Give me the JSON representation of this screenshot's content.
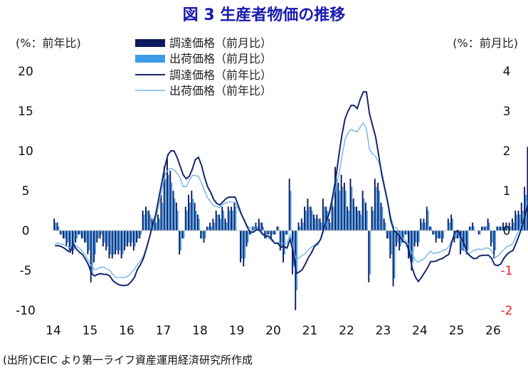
{
  "chart_data": {
    "type": "bar+line",
    "title": "図 3 生産者物価の推移",
    "left_unit": "(%：前年比)",
    "right_unit": "(%：前月比)",
    "source": "(出所)CEIC より第一ライフ資産運用経済研究所作成",
    "left_axis": {
      "min": -10,
      "max": 20,
      "ticks": [
        "20",
        "15",
        "10",
        "5",
        "0",
        "-5",
        "-10"
      ]
    },
    "right_axis": {
      "min": -2,
      "max": 4,
      "ticks": [
        "4",
        "3",
        "2",
        "1",
        "0",
        "-1",
        "-2"
      ]
    },
    "x_labels": [
      "14",
      "15",
      "16",
      "17",
      "18",
      "19",
      "20",
      "21",
      "22",
      "23",
      "24",
      "25",
      "26"
    ],
    "start": "2014-01",
    "colors": {
      "procure_bar": "#0d1a5c",
      "shipment_bar": "#3d9bea",
      "procure_line": "#16266e",
      "shipment_line": "#5aaae8"
    },
    "legend": [
      {
        "label": "調達価格（前月比）",
        "kind": "bar",
        "series": "procure_mom"
      },
      {
        "label": "出荷価格（前月比）",
        "kind": "bar",
        "series": "shipment_mom"
      },
      {
        "label": "調達価格（前年比）",
        "kind": "line",
        "series": "procure_yoy"
      },
      {
        "label": "出荷価格（前年比）",
        "kind": "line",
        "series": "shipment_yoy"
      }
    ],
    "series": {
      "procure_yoy": [
        -1.9,
        -1.9,
        -2.0,
        -2.2,
        -2.5,
        -2.7,
        -1.7,
        -2.3,
        -2.7,
        -3.0,
        -3.6,
        -4.3,
        -5.4,
        -5.7,
        -5.5,
        -5.4,
        -5.5,
        -5.5,
        -5.7,
        -6.3,
        -6.6,
        -6.8,
        -6.9,
        -6.9,
        -6.8,
        -6.4,
        -5.9,
        -4.9,
        -4.3,
        -3.5,
        -2.2,
        -0.8,
        0.7,
        2.0,
        4.0,
        6.0,
        8.0,
        9.5,
        10.0,
        10.0,
        9.2,
        8.1,
        7.0,
        6.5,
        6.8,
        7.7,
        8.9,
        9.2,
        8.2,
        6.7,
        5.5,
        4.8,
        3.9,
        3.4,
        3.2,
        3.6,
        4.0,
        4.2,
        4.2,
        4.2,
        3.2,
        2.1,
        1.3,
        0.4,
        -0.2,
        -0.2,
        0.1,
        0.1,
        -0.4,
        -0.7,
        -0.7,
        -1.1,
        -1.6,
        -1.6,
        -2.1,
        -2.0,
        -2.2,
        -1.1,
        -2.6,
        -5.4,
        -5.2,
        -4.9,
        -4.2,
        -3.4,
        -2.8,
        -2.0,
        -1.7,
        -1.1,
        0.2,
        1.3,
        2.5,
        4.4,
        6.6,
        9.5,
        12.0,
        14.0,
        15.0,
        15.7,
        15.7,
        15.3,
        16.5,
        17.4,
        17.4,
        14.7,
        13.2,
        11.8,
        9.5,
        7.1,
        5.3,
        3.5,
        1.2,
        0.0,
        -0.3,
        -0.8,
        -1.3,
        -1.6,
        -2.6,
        -4.7,
        -5.8,
        -6.4,
        -5.9,
        -5.3,
        -4.7,
        -3.9,
        -3.9,
        -3.8,
        -3.6,
        -3.5,
        -3.2,
        -3.0,
        -1.4,
        -0.2,
        0.0,
        -0.9,
        -1.7,
        -2.8,
        -3.2,
        -3.5,
        -3.5,
        -3.2,
        -3.1,
        -3.1,
        -3.1,
        -3.5,
        -4.3,
        -4.4,
        -4.2,
        -3.5,
        -3.0,
        -2.7,
        -2.5,
        -1.6,
        -0.6,
        0.5,
        2.0,
        3.5,
        5.5,
        6.5
      ],
      "shipment_yoy": [
        -1.6,
        -1.6,
        -1.7,
        -1.8,
        -2.0,
        -2.2,
        -1.6,
        -1.9,
        -2.2,
        -2.6,
        -3.1,
        -3.8,
        -4.5,
        -4.9,
        -4.8,
        -4.6,
        -4.6,
        -4.8,
        -5.0,
        -5.5,
        -5.9,
        -5.9,
        -5.9,
        -5.9,
        -5.7,
        -5.3,
        -4.9,
        -4.3,
        -3.8,
        -3.2,
        -2.1,
        -0.8,
        0.4,
        1.4,
        3.0,
        5.0,
        6.9,
        7.6,
        7.8,
        7.6,
        7.2,
        6.6,
        5.5,
        5.5,
        6.3,
        6.9,
        6.9,
        6.8,
        6.0,
        5.0,
        4.1,
        3.6,
        3.1,
        3.0,
        2.9,
        3.3,
        3.5,
        3.6,
        3.6,
        3.5,
        2.8,
        2.0,
        1.4,
        0.6,
        0.3,
        0.3,
        0.1,
        -0.1,
        -0.6,
        -0.7,
        -1.0,
        -1.3,
        -1.6,
        -1.5,
        -1.6,
        -1.6,
        -1.6,
        -0.5,
        -2.0,
        -3.7,
        -3.4,
        -3.1,
        -2.9,
        -2.4,
        -2.1,
        -1.8,
        -1.5,
        -1.2,
        -0.1,
        0.9,
        2.1,
        3.8,
        5.5,
        7.0,
        9.3,
        11.4,
        12.3,
        12.7,
        12.5,
        12.4,
        13.0,
        13.5,
        12.8,
        10.2,
        9.6,
        9.3,
        8.6,
        7.5,
        5.5,
        3.7,
        1.7,
        0.4,
        0.3,
        -0.5,
        -1.0,
        -1.3,
        -1.8,
        -3.0,
        -3.7,
        -4.0,
        -3.7,
        -3.5,
        -3.0,
        -2.6,
        -2.9,
        -2.8,
        -2.7,
        -2.5,
        -2.4,
        -2.0,
        -1.2,
        -0.6,
        -0.3,
        -1.3,
        -2.4,
        -3.0,
        -2.8,
        -2.5,
        -2.4,
        -2.3,
        -2.4,
        -2.2,
        -2.2,
        -2.5,
        -3.4,
        -3.2,
        -2.8,
        -2.4,
        -2.0,
        -1.9,
        -1.6,
        -0.7,
        0.1,
        0.9,
        2.0,
        3.8,
        6.0,
        7.0
      ],
      "procure_mom": [
        0.3,
        0.2,
        -0.1,
        -0.2,
        -0.4,
        -0.5,
        -0.6,
        -0.3,
        -0.1,
        -0.2,
        -0.3,
        -0.6,
        -1.3,
        -0.8,
        -0.3,
        -0.2,
        -0.4,
        -0.5,
        -0.7,
        -0.7,
        -0.6,
        -0.6,
        -0.7,
        -0.5,
        -0.4,
        -0.4,
        -0.5,
        -0.3,
        -0.2,
        0.5,
        0.6,
        0.5,
        0.3,
        0.3,
        0.4,
        0.9,
        1.6,
        1.8,
        1.5,
        1.0,
        0.7,
        -0.6,
        -0.2,
        0.6,
        0.9,
        1.0,
        0.7,
        0.4,
        -0.2,
        -0.3,
        0.1,
        0.2,
        0.3,
        0.5,
        0.4,
        0.6,
        0.3,
        0.6,
        0.6,
        0.7,
        0.0,
        -0.8,
        -0.9,
        -0.4,
        -0.1,
        0.1,
        0.2,
        0.3,
        0.2,
        -0.2,
        -0.1,
        -0.2,
        -0.1,
        0.1,
        -0.5,
        -0.8,
        -0.1,
        1.3,
        -1.1,
        -2.0,
        0.2,
        0.3,
        0.6,
        0.8,
        0.6,
        0.4,
        0.4,
        0.3,
        0.8,
        0.6,
        0.3,
        0.8,
        1.6,
        1.2,
        1.4,
        1.2,
        0.6,
        1.3,
        0.8,
        0.6,
        0.5,
        1.0,
        0.7,
        -1.3,
        0.6,
        1.3,
        1.2,
        0.7,
        0.3,
        -0.2,
        -0.7,
        -1.4,
        -0.4,
        -0.5,
        -0.3,
        -0.1,
        -0.7,
        -1.0,
        -0.4,
        -0.4,
        0.3,
        0.3,
        0.6,
        0.1,
        -0.1,
        -0.3,
        -0.2,
        -0.3,
        0.0,
        0.3,
        0.4,
        -0.3,
        -0.2,
        -0.6,
        -0.5,
        -0.6,
        0.1,
        0.2,
        0.0,
        -0.1,
        0.1,
        0.1,
        0.3,
        -0.4,
        -0.7,
        0.1,
        0.1,
        0.2,
        0.2,
        0.2,
        0.3,
        0.5,
        0.5,
        0.7,
        1.1,
        2.1,
        1.2,
        1.3
      ],
      "shipment_mom": [
        0.2,
        0.1,
        -0.1,
        -0.2,
        -0.3,
        -0.4,
        -0.5,
        -0.2,
        -0.1,
        -0.2,
        -0.3,
        -0.5,
        -1.1,
        -0.6,
        -0.2,
        -0.1,
        -0.3,
        -0.4,
        -0.6,
        -0.6,
        -0.5,
        -0.5,
        -0.6,
        -0.4,
        -0.3,
        -0.3,
        -0.4,
        -0.2,
        -0.1,
        0.4,
        0.5,
        0.4,
        0.2,
        0.2,
        0.3,
        0.7,
        1.3,
        1.4,
        1.2,
        0.8,
        0.5,
        -0.5,
        -0.2,
        0.5,
        0.7,
        0.8,
        0.5,
        0.3,
        -0.2,
        -0.2,
        0.1,
        0.1,
        0.2,
        0.4,
        0.3,
        0.5,
        0.2,
        0.5,
        0.5,
        0.6,
        0.0,
        -0.7,
        -0.7,
        -0.3,
        -0.1,
        0.1,
        0.1,
        0.2,
        0.1,
        -0.2,
        -0.1,
        -0.1,
        -0.1,
        0.1,
        -0.4,
        -0.6,
        -0.1,
        1.0,
        -0.9,
        -1.5,
        0.1,
        0.2,
        0.5,
        0.6,
        0.5,
        0.3,
        0.3,
        0.2,
        0.6,
        0.5,
        0.2,
        0.6,
        1.3,
        1.0,
        1.1,
        1.0,
        0.5,
        1.1,
        0.6,
        0.5,
        0.4,
        0.8,
        0.5,
        -1.1,
        0.5,
        1.1,
        1.0,
        0.6,
        0.2,
        -0.2,
        -0.6,
        -1.2,
        -0.3,
        -0.4,
        -0.2,
        -0.1,
        -0.6,
        -0.8,
        -0.3,
        -0.3,
        0.2,
        0.2,
        0.5,
        0.1,
        -0.1,
        -0.2,
        -0.2,
        -0.2,
        0.0,
        0.2,
        0.3,
        -0.2,
        -0.2,
        -0.5,
        -0.4,
        -0.5,
        0.1,
        0.1,
        0.0,
        -0.1,
        0.1,
        0.1,
        0.2,
        -0.3,
        -0.5,
        0.1,
        0.1,
        0.1,
        0.1,
        0.1,
        0.2,
        0.4,
        0.4,
        0.5,
        0.9,
        1.7,
        0.9,
        1.0
      ]
    }
  }
}
